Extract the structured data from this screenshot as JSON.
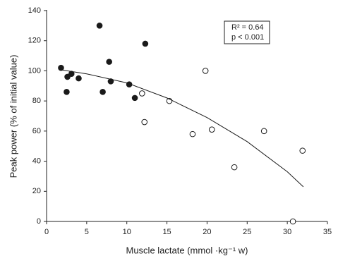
{
  "chart_data": {
    "type": "scatter",
    "xlabel": "Muscle lactate (mmol ·kg⁻¹ w)",
    "ylabel": "Peak power (% of initial value)",
    "annotations": [
      "R² = 0.64",
      "p < 0.001"
    ],
    "xlim": [
      0,
      35
    ],
    "xticks": [
      0,
      5,
      10,
      15,
      20,
      25,
      30,
      35
    ],
    "ylim": [
      0,
      140
    ],
    "yticks": [
      0,
      20,
      40,
      60,
      80,
      100,
      120,
      140
    ],
    "grid": false,
    "series": [
      {
        "marker": "filled",
        "color": "#1a1a1a",
        "x": [
          1.8,
          2.5,
          2.6,
          3.1,
          4.0,
          6.6,
          7.0,
          7.8,
          8.0,
          10.3,
          11.0,
          12.3
        ],
        "y": [
          102,
          86,
          96,
          98,
          95,
          130,
          86,
          106,
          93,
          91,
          82,
          118
        ]
      },
      {
        "marker": "open",
        "color": "#1a1a1a",
        "x": [
          11.9,
          12.2,
          15.3,
          18.2,
          19.8,
          20.6,
          23.4,
          27.1,
          30.7,
          31.9
        ],
        "y": [
          85,
          66,
          80,
          58,
          100,
          61,
          36,
          60,
          0,
          47
        ]
      },
      {
        "type": "line",
        "color": "#1a1a1a",
        "x": [
          2,
          5,
          10,
          15,
          20,
          25,
          30,
          32
        ],
        "y": [
          100.5,
          98,
          92,
          82,
          69,
          53,
          33,
          23
        ]
      }
    ]
  }
}
